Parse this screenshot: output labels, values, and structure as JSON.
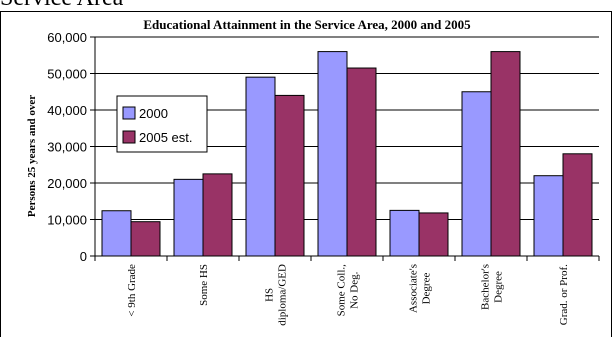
{
  "page": {
    "heading": "Service Area"
  },
  "chart_data": {
    "type": "bar",
    "title": "Educational Attainment in the Service Area, 2000 and 2005",
    "ylabel": "Persons 25 years and over",
    "xlabel": "",
    "ylim": [
      0,
      60000
    ],
    "ytick_values": [
      0,
      10000,
      20000,
      30000,
      40000,
      50000,
      60000
    ],
    "ytick_labels": [
      "0",
      "10,000",
      "20,000",
      "30,000",
      "40,000",
      "50,000",
      "60,000"
    ],
    "grid": true,
    "legend_position": "left",
    "categories": [
      [
        "< 9th Grade"
      ],
      [
        "Some HS"
      ],
      [
        "HS",
        "diploma/GED"
      ],
      [
        "Some Coll.,",
        "No Deg."
      ],
      [
        "Associate's",
        "Degree"
      ],
      [
        "Bachelor's",
        "Degree"
      ],
      [
        "Grad. or Prof."
      ]
    ],
    "series": [
      {
        "name": "2000",
        "color": "#9999ff",
        "values": [
          12400,
          21000,
          49000,
          56000,
          12500,
          45000,
          22000
        ]
      },
      {
        "name": "2005 est.",
        "color": "#993366",
        "values": [
          9400,
          22500,
          44000,
          51500,
          11800,
          56000,
          28000
        ]
      }
    ]
  }
}
